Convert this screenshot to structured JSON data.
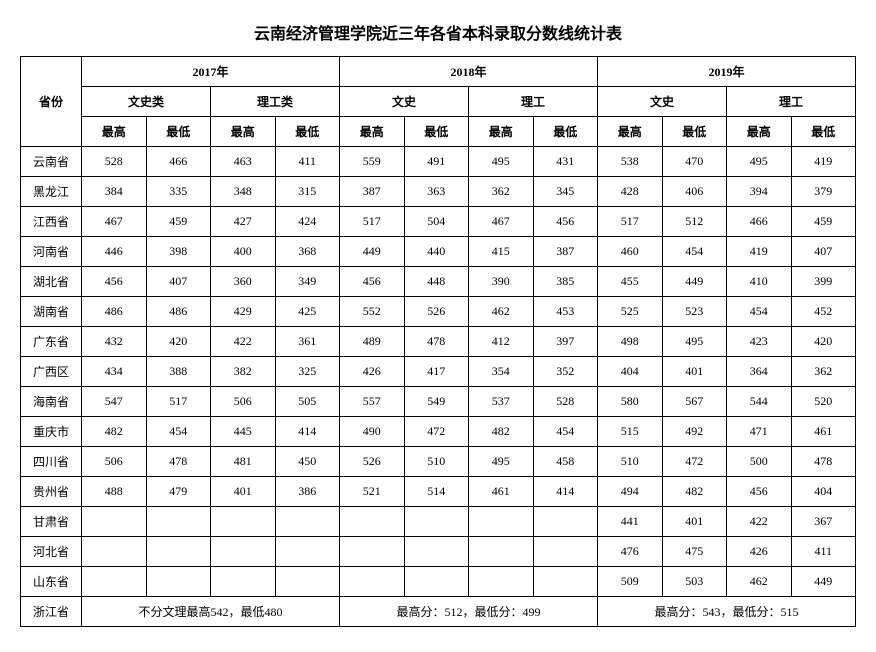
{
  "title": "云南经济管理学院近三年各省本科录取分数线统计表",
  "header": {
    "province": "省份",
    "y2017": "2017年",
    "y2018": "2018年",
    "y2019": "2019年",
    "wenshi_lei": "文史类",
    "ligong_lei": "理工类",
    "wenshi": "文史",
    "ligong": "理工",
    "max": "最高",
    "min": "最低"
  },
  "rows": [
    {
      "p": "云南省",
      "d": [
        "528",
        "466",
        "463",
        "411",
        "559",
        "491",
        "495",
        "431",
        "538",
        "470",
        "495",
        "419"
      ]
    },
    {
      "p": "黑龙江",
      "d": [
        "384",
        "335",
        "348",
        "315",
        "387",
        "363",
        "362",
        "345",
        "428",
        "406",
        "394",
        "379"
      ]
    },
    {
      "p": "江西省",
      "d": [
        "467",
        "459",
        "427",
        "424",
        "517",
        "504",
        "467",
        "456",
        "517",
        "512",
        "466",
        "459"
      ]
    },
    {
      "p": "河南省",
      "d": [
        "446",
        "398",
        "400",
        "368",
        "449",
        "440",
        "415",
        "387",
        "460",
        "454",
        "419",
        "407"
      ]
    },
    {
      "p": "湖北省",
      "d": [
        "456",
        "407",
        "360",
        "349",
        "456",
        "448",
        "390",
        "385",
        "455",
        "449",
        "410",
        "399"
      ]
    },
    {
      "p": "湖南省",
      "d": [
        "486",
        "486",
        "429",
        "425",
        "552",
        "526",
        "462",
        "453",
        "525",
        "523",
        "454",
        "452"
      ]
    },
    {
      "p": "广东省",
      "d": [
        "432",
        "420",
        "422",
        "361",
        "489",
        "478",
        "412",
        "397",
        "498",
        "495",
        "423",
        "420"
      ]
    },
    {
      "p": "广西区",
      "d": [
        "434",
        "388",
        "382",
        "325",
        "426",
        "417",
        "354",
        "352",
        "404",
        "401",
        "364",
        "362"
      ]
    },
    {
      "p": "海南省",
      "d": [
        "547",
        "517",
        "506",
        "505",
        "557",
        "549",
        "537",
        "528",
        "580",
        "567",
        "544",
        "520"
      ]
    },
    {
      "p": "重庆市",
      "d": [
        "482",
        "454",
        "445",
        "414",
        "490",
        "472",
        "482",
        "454",
        "515",
        "492",
        "471",
        "461"
      ]
    },
    {
      "p": "四川省",
      "d": [
        "506",
        "478",
        "481",
        "450",
        "526",
        "510",
        "495",
        "458",
        "510",
        "472",
        "500",
        "478"
      ]
    },
    {
      "p": "贵州省",
      "d": [
        "488",
        "479",
        "401",
        "386",
        "521",
        "514",
        "461",
        "414",
        "494",
        "482",
        "456",
        "404"
      ]
    },
    {
      "p": "甘肃省",
      "d": [
        "",
        "",
        "",
        "",
        "",
        "",
        "",
        "",
        "441",
        "401",
        "422",
        "367"
      ]
    },
    {
      "p": "河北省",
      "d": [
        "",
        "",
        "",
        "",
        "",
        "",
        "",
        "",
        "476",
        "475",
        "426",
        "411"
      ]
    },
    {
      "p": "山东省",
      "d": [
        "",
        "",
        "",
        "",
        "",
        "",
        "",
        "",
        "509",
        "503",
        "462",
        "449"
      ]
    }
  ],
  "zhejiang": {
    "p": "浙江省",
    "n2017": "不分文理最高542，最低480",
    "n2018": "最高分：512，最低分：499",
    "n2019": "最高分：543，最低分：515"
  }
}
